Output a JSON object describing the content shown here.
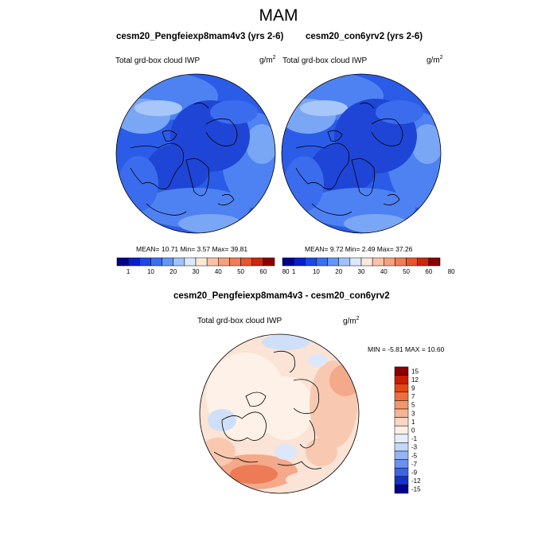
{
  "title": "MAM",
  "panels": [
    {
      "title": "cesm20_Pengfeiexp8mam4v3 (yrs 2-6)",
      "variable": "Total grd-box cloud IWP",
      "units": "g/m",
      "units_exp": "2",
      "stats": "MEAN=  10.71  Min=   3.57  Max=  39.81"
    },
    {
      "title": "cesm20_con6yrv2 (yrs 2-6)",
      "variable": "Total grd-box cloud IWP",
      "units": "g/m",
      "units_exp": "2",
      "stats": "MEAN=   9.72  Min=   2.49  Max=  37.26"
    }
  ],
  "diff_panel": {
    "title": "cesm20_Pengfeiexp8mam4v3 - cesm20_con6yrv2",
    "variable": "Total grd-box cloud IWP",
    "units": "g/m",
    "units_exp": "2",
    "stats": "MIN =  -5.81 MAX =  10.60"
  },
  "colorbar_abs": {
    "labels": [
      "1",
      "10",
      "20",
      "30",
      "40",
      "50",
      "60",
      "80"
    ],
    "colors": [
      "#00008b",
      "#0a1ec8",
      "#1e46e6",
      "#3c6ef0",
      "#6496f5",
      "#a0c3fa",
      "#dce9fc",
      "#fde9dc",
      "#f9c3aa",
      "#f5a07d",
      "#f07d55",
      "#e6552d",
      "#c8280f",
      "#8b0000"
    ]
  },
  "colorbar_diff": {
    "labels": [
      "15",
      "12",
      "9",
      "7",
      "5",
      "3",
      "1",
      "0",
      "-1",
      "-3",
      "-5",
      "-7",
      "-9",
      "-12",
      "-15"
    ],
    "colors": [
      "#8b0000",
      "#c81e00",
      "#e64614",
      "#f06e3c",
      "#f59669",
      "#f5b496",
      "#fad7c3",
      "#fdefe6",
      "#e6effd",
      "#c3d7fa",
      "#96b4f5",
      "#6991f0",
      "#3c64e6",
      "#1432c8",
      "#00008b"
    ]
  }
}
